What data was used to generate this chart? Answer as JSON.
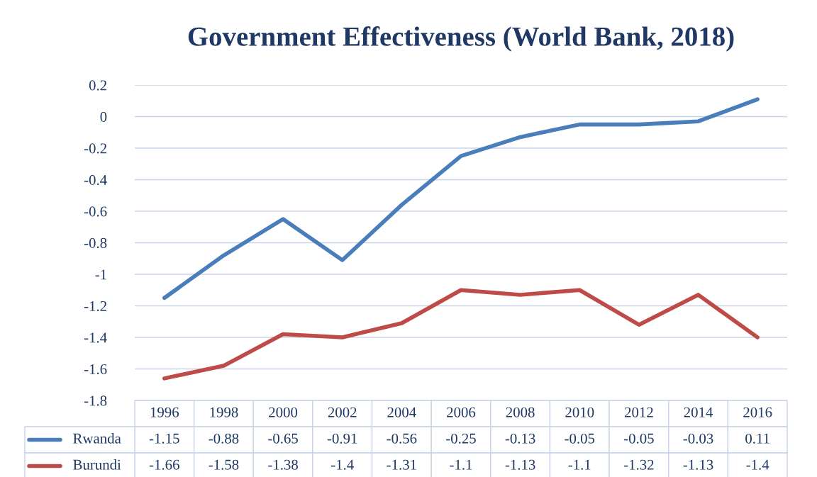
{
  "chart_data": {
    "type": "line",
    "title": "Government Effectiveness (World Bank, 2018)",
    "categories": [
      "1996",
      "1998",
      "2000",
      "2002",
      "2004",
      "2006",
      "2008",
      "2010",
      "2012",
      "2014",
      "2016"
    ],
    "series": [
      {
        "name": "Rwanda",
        "color": "#4a7ebb",
        "values": [
          -1.15,
          -0.88,
          -0.65,
          -0.91,
          -0.56,
          -0.25,
          -0.13,
          -0.05,
          -0.05,
          -0.03,
          0.11
        ]
      },
      {
        "name": "Burundi",
        "color": "#be4b48",
        "values": [
          -1.66,
          -1.58,
          -1.38,
          -1.4,
          -1.31,
          -1.1,
          -1.13,
          -1.1,
          -1.32,
          -1.13,
          -1.4
        ]
      }
    ],
    "ylim": [
      -1.8,
      0.2
    ],
    "yticks": [
      -1.8,
      -1.6,
      -1.4,
      -1.2,
      -1,
      -0.8,
      -0.6,
      -0.4,
      -0.2,
      0,
      0.2
    ],
    "grid": "y",
    "legend": "bottom",
    "data_labels": true,
    "tick_labels": "y",
    "marker": "none",
    "line_style": "solid"
  }
}
